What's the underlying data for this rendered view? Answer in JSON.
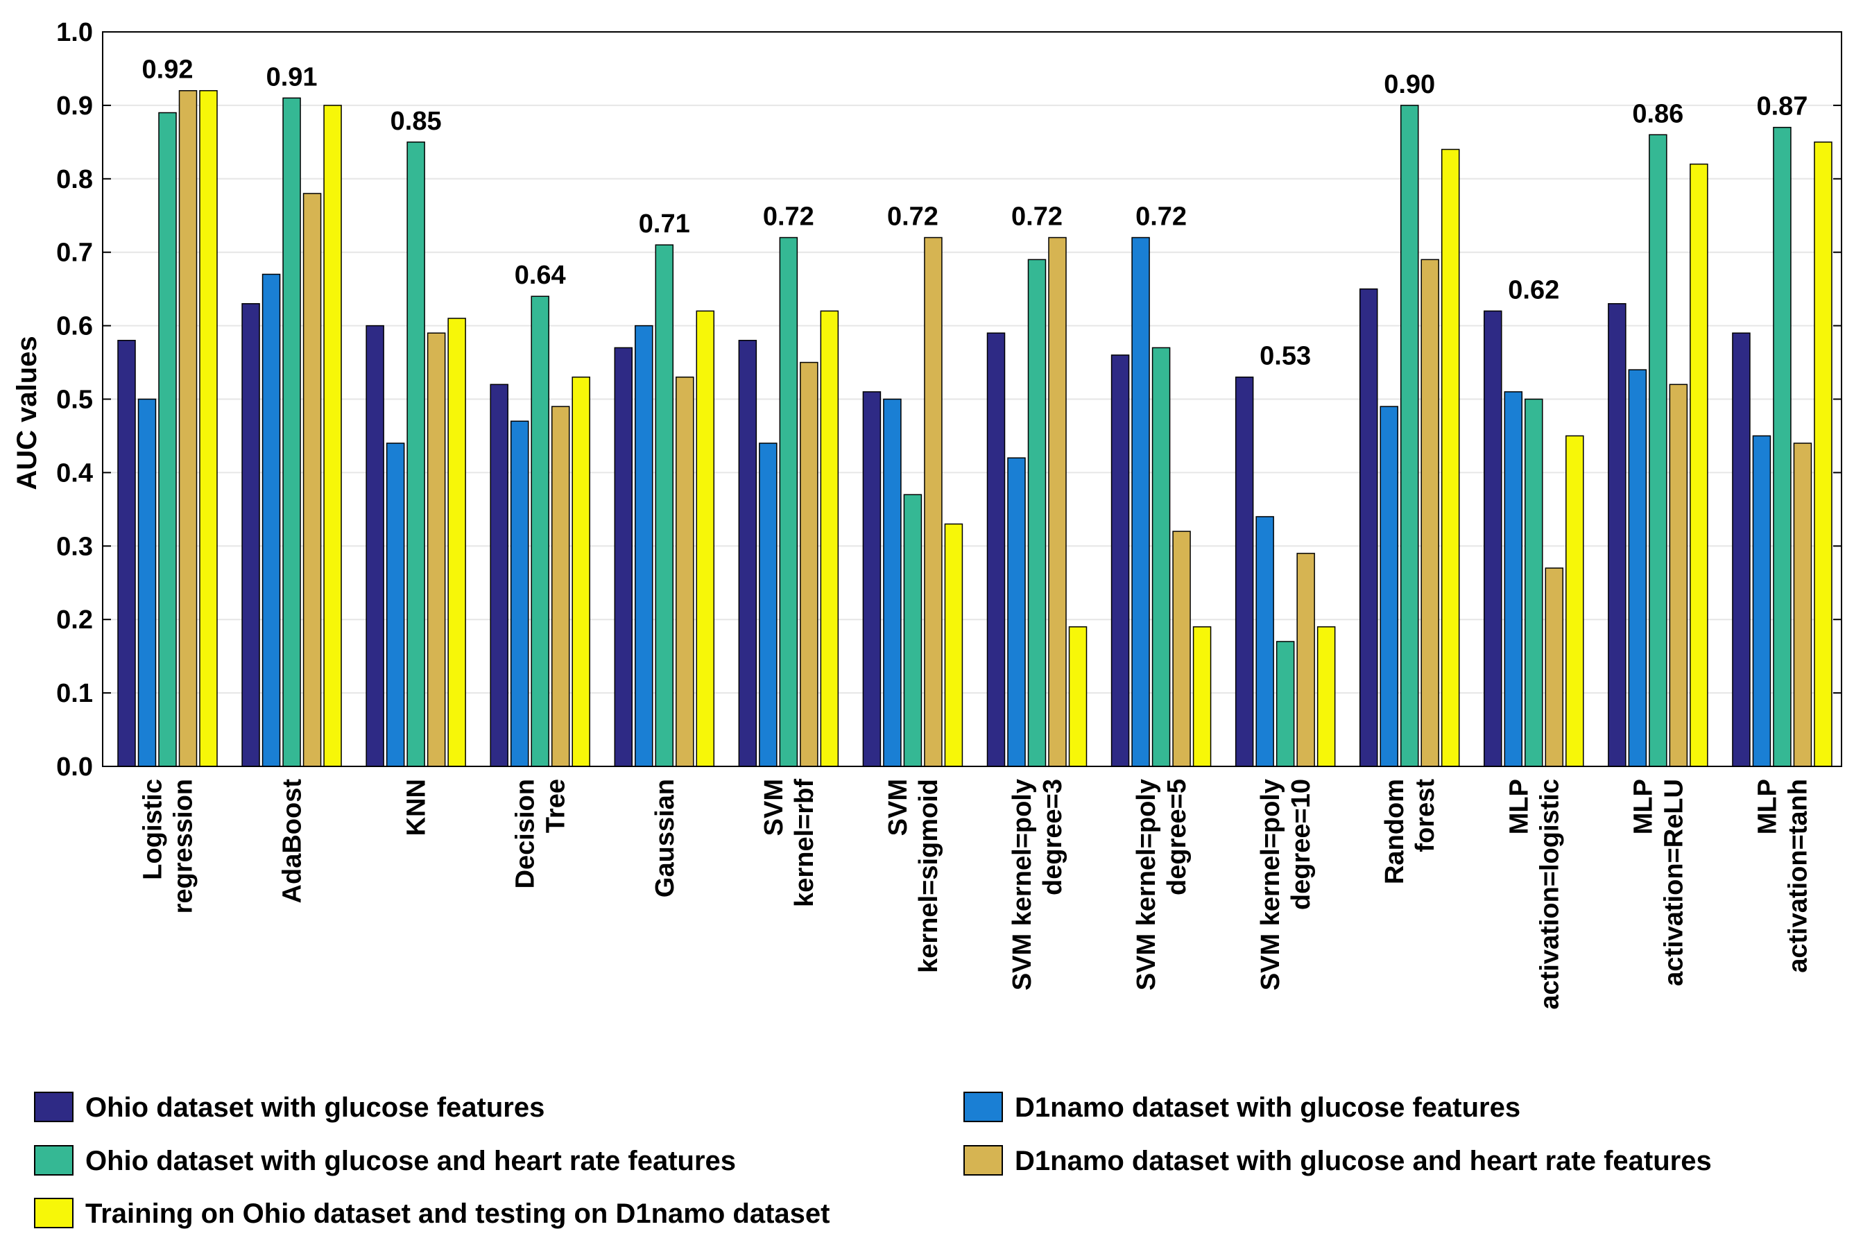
{
  "chart_data": {
    "type": "bar",
    "title": "",
    "xlabel": "",
    "ylabel": "AUC values",
    "ylim": [
      0,
      1.0
    ],
    "yticks": [
      "0.0",
      "0.1",
      "0.2",
      "0.3",
      "0.4",
      "0.5",
      "0.6",
      "0.7",
      "0.8",
      "0.9",
      "1.0"
    ],
    "grid": true,
    "legend_position": "bottom",
    "categories": [
      [
        "Logistic",
        "regression"
      ],
      [
        "AdaBoost"
      ],
      [
        "KNN"
      ],
      [
        "Decision",
        "Tree"
      ],
      [
        "Gaussian"
      ],
      [
        "SVM",
        "kernel=rbf"
      ],
      [
        "SVM",
        "kernel=sigmoid"
      ],
      [
        "SVM kernel=poly",
        "degree=3"
      ],
      [
        "SVM kernel=poly",
        "degree=5"
      ],
      [
        "SVM kernel=poly",
        "degree=10"
      ],
      [
        "Random",
        "forest"
      ],
      [
        "MLP",
        "activation=logistic"
      ],
      [
        "MLP",
        "activation=ReLU"
      ],
      [
        "MLP",
        "activation=tanh"
      ]
    ],
    "series": [
      {
        "name": "Ohio dataset with glucose features",
        "color": "#2e2a85",
        "values": [
          0.58,
          0.63,
          0.6,
          0.52,
          0.57,
          0.58,
          0.51,
          0.59,
          0.56,
          0.53,
          0.65,
          0.62,
          0.63,
          0.59
        ]
      },
      {
        "name": "D1namo dataset with glucose features",
        "color": "#1a7fd4",
        "values": [
          0.5,
          0.67,
          0.44,
          0.47,
          0.6,
          0.44,
          0.5,
          0.42,
          0.72,
          0.34,
          0.49,
          0.51,
          0.54,
          0.45
        ]
      },
      {
        "name": "Ohio dataset with glucose and heart rate features",
        "color": "#35b894",
        "values": [
          0.89,
          0.91,
          0.85,
          0.64,
          0.71,
          0.72,
          0.37,
          0.69,
          0.57,
          0.17,
          0.9,
          0.5,
          0.86,
          0.87
        ]
      },
      {
        "name": "D1namo dataset with glucose and heart rate features",
        "color": "#d6b452",
        "values": [
          0.92,
          0.78,
          0.59,
          0.49,
          0.53,
          0.55,
          0.72,
          0.72,
          0.32,
          0.29,
          0.69,
          0.27,
          0.52,
          0.44
        ]
      },
      {
        "name": "Training on Ohio dataset and testing on D1namo dataset",
        "color": "#f7f708",
        "values": [
          0.92,
          0.9,
          0.61,
          0.53,
          0.62,
          0.62,
          0.33,
          0.19,
          0.19,
          0.19,
          0.84,
          0.45,
          0.82,
          0.85
        ]
      }
    ],
    "annotations": [
      "0.92",
      "0.91",
      "0.85",
      "0.64",
      "0.71",
      "0.72",
      "0.72",
      "0.72",
      "0.72",
      "0.53",
      "0.90",
      "0.62",
      "0.86",
      "0.87"
    ]
  }
}
